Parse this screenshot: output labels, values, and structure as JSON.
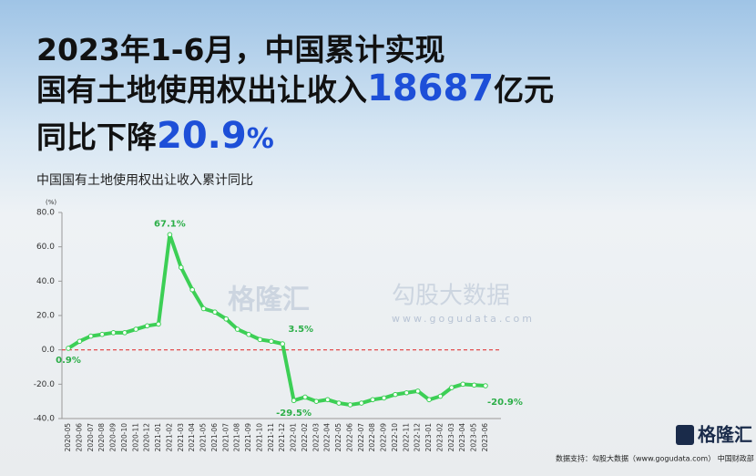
{
  "chart_data": {
    "type": "line",
    "headline": {
      "line1": "2023年1-6月，中国累计实现",
      "line2": "国有土地使用权出让收入",
      "amount": "18687",
      "amount_unit": "亿元",
      "line3": "同比下降",
      "change": "20.9",
      "change_unit": "%"
    },
    "title": "中国国有土地使用权出让收入累计同比",
    "y_unit": "(%)",
    "categories": [
      "2020-05",
      "2020-06",
      "2020-07",
      "2020-08",
      "2020-09",
      "2020-10",
      "2020-11",
      "2020-12",
      "2021-01",
      "2021-02",
      "2021-03",
      "2021-04",
      "2021-05",
      "2021-06",
      "2021-07",
      "2021-08",
      "2021-09",
      "2021-10",
      "2021-11",
      "2021-12",
      "2022-01",
      "2022-02",
      "2022-03",
      "2022-04",
      "2022-05",
      "2022-06",
      "2022-07",
      "2022-08",
      "2022-09",
      "2022-10",
      "2022-11",
      "2022-12",
      "2023-01",
      "2023-02",
      "2023-03",
      "2023-04",
      "2023-05",
      "2023-06"
    ],
    "values": [
      0.9,
      5,
      8,
      9,
      10,
      10,
      12,
      14,
      15,
      67.1,
      48,
      35,
      24,
      22,
      18,
      12,
      9,
      6,
      5,
      3.5,
      -29.5,
      -27.5,
      -30,
      -29,
      -31,
      -32,
      -31,
      -29,
      -28,
      -26,
      -25,
      -24,
      -29,
      -27,
      -22,
      -20,
      -20.5,
      -20.9
    ],
    "value_labels": [
      "0.9%",
      null,
      null,
      null,
      null,
      null,
      null,
      null,
      null,
      "67.1%",
      null,
      null,
      null,
      null,
      null,
      null,
      null,
      null,
      null,
      "3.5%",
      "-29.5%",
      null,
      null,
      null,
      null,
      null,
      null,
      null,
      null,
      null,
      null,
      null,
      null,
      null,
      null,
      null,
      null,
      "-20.9%"
    ],
    "color": "#3ccf55",
    "ylim": [
      -40,
      80
    ],
    "yticks": [
      {
        "value": -40,
        "label": "-40.0"
      },
      {
        "value": -20,
        "label": "-20.0"
      },
      {
        "value": 0,
        "label": "0.0"
      },
      {
        "value": 20,
        "label": "20.0"
      },
      {
        "value": 40,
        "label": "40.0"
      },
      {
        "value": 60,
        "label": "60.0"
      },
      {
        "value": 80,
        "label": "80.0"
      }
    ],
    "reference_line": {
      "value": 0,
      "color": "#e23b3b"
    },
    "brand": "格隆汇",
    "watermark": {
      "brand": "格隆汇",
      "name": "勾股大数据",
      "url": "www.gogudata.com"
    },
    "source": "数据支持：勾股大数据（www.gogudata.com） 中国财政部"
  }
}
